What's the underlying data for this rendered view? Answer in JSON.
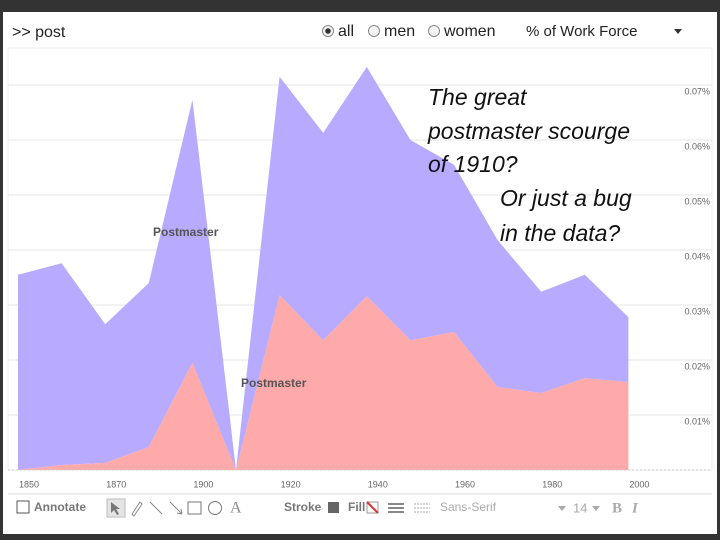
{
  "ui": {
    "query": ">> post",
    "options": [
      "all",
      "men",
      "women"
    ],
    "selected": "all",
    "measure": "% of Work Force",
    "toolbar": {
      "annotate": "Annotate",
      "stroke": "Stroke",
      "fill": "Fill",
      "font": "Sans-Serif",
      "size": "14",
      "bold": "B",
      "italic": "I",
      "text_tool": "A"
    }
  },
  "chart_data": {
    "type": "stacked-area",
    "categories": [
      "1850",
      null,
      "1870",
      null,
      "1900",
      null,
      "1920",
      null,
      "1940",
      null,
      "1960",
      null,
      "1980",
      null,
      "2000"
    ],
    "series": [
      {
        "name": "Postmaster",
        "color": "#ffaaaa",
        "values": [
          0,
          0.0009,
          0.0013,
          0.0042,
          0.0195,
          0,
          0.0318,
          0.0236,
          0.0316,
          0.0236,
          0.0251,
          0.0151,
          0.014,
          0.0167,
          0.016
        ]
      },
      {
        "name": "Postmaster",
        "color": "#b8aaff",
        "values": [
          0.0355,
          0.0367,
          0.0252,
          0.0298,
          0.0478,
          0,
          0.0397,
          0.0377,
          0.0417,
          0.0364,
          0.0304,
          0.0267,
          0.0184,
          0.0188,
          0.0118
        ]
      }
    ],
    "ylim": [
      0,
      0.075
    ],
    "yticks": [
      {
        "value": 0.01,
        "label": "0.01%"
      },
      {
        "value": 0.02,
        "label": "0.02%"
      },
      {
        "value": 0.03,
        "label": "0.03%"
      },
      {
        "value": 0.04,
        "label": "0.04%"
      },
      {
        "value": 0.05,
        "label": "0.05%"
      },
      {
        "value": 0.06,
        "label": "0.06%"
      },
      {
        "value": 0.07,
        "label": "0.07%"
      }
    ],
    "grid": true,
    "annotation": [
      "The great",
      "postmaster scourge",
      "of 1910?",
      "Or just a bug",
      "in the data?"
    ]
  }
}
